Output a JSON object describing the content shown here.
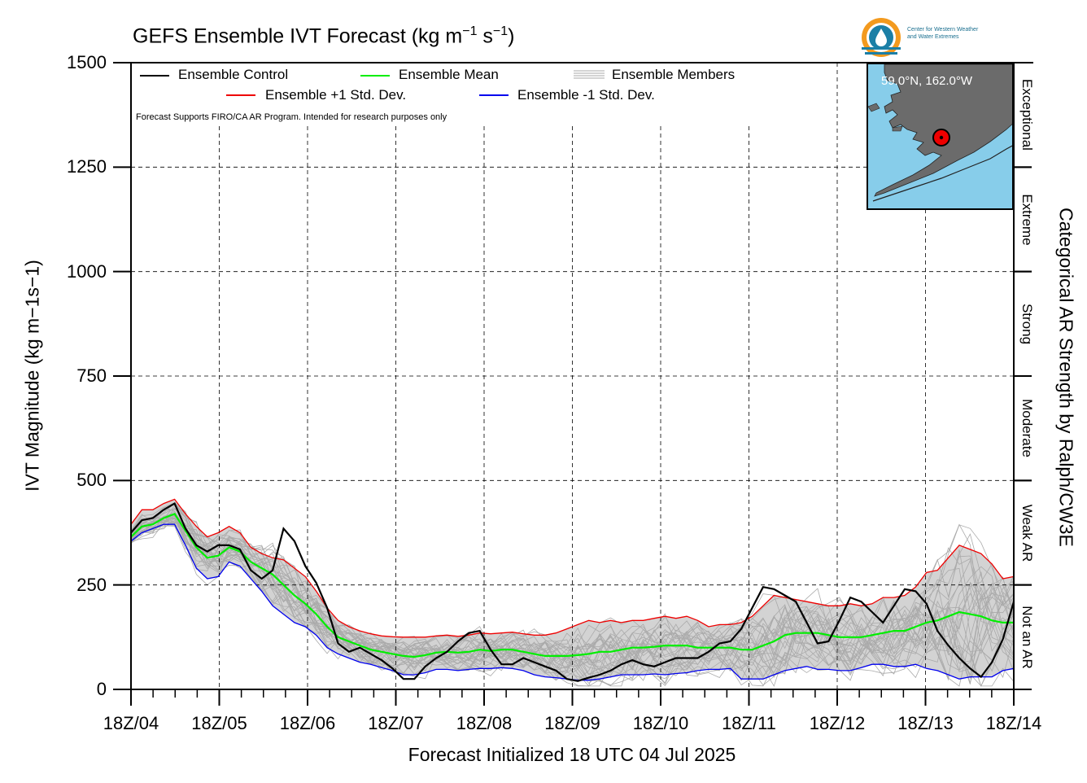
{
  "title": "GEFS Ensemble IVT Forecast (kg m",
  "title_exp1": "−1",
  "title_mid": " s",
  "title_exp2": "−1",
  "title_end": ")",
  "logo": {
    "line1": "Center for Western Weather",
    "line2": "and Water Extremes"
  },
  "legend": {
    "control": "Ensemble Control",
    "mean": "Ensemble Mean",
    "members": "Ensemble Members",
    "plus1": "Ensemble +1 Std. Dev.",
    "minus1": "Ensemble -1 Std. Dev."
  },
  "note": "Forecast Supports FIRO/CA AR Program. Intended for research purposes only",
  "inset_label": "59.0°N, 162.0°W",
  "ylabel": "IVT Magnitude (kg m−1s−1)",
  "right_label": "Categorical AR Strength by Ralph/CW3E",
  "xlabel": "Forecast Initialized 18 UTC 04 Jul 2025",
  "colors": {
    "control": "#000000",
    "mean": "#00ee00",
    "plus1": "#ee0000",
    "minus1": "#0000ee",
    "members": "#aaaaaa",
    "band": "#d3d3d3",
    "ocean": "#87cdea",
    "land": "#6b6b6b"
  },
  "chart_data": {
    "type": "line",
    "title": "GEFS Ensemble IVT Forecast (kg m−1 s−1)",
    "xlabel": "Forecast Initialized 18 UTC 04 Jul 2025",
    "ylabel": "IVT Magnitude (kg m−1s−1)",
    "ylim": [
      0,
      1500
    ],
    "yticks": [
      0,
      250,
      500,
      750,
      1000,
      1250,
      1500
    ],
    "xticks": [
      "18Z/04",
      "18Z/05",
      "18Z/06",
      "18Z/07",
      "18Z/08",
      "18Z/09",
      "18Z/10",
      "18Z/11",
      "18Z/12",
      "18Z/13",
      "18Z/14"
    ],
    "x_step_hours": 6,
    "grid": true,
    "categories_right": [
      {
        "label": "Not an AR",
        "from": 0,
        "to": 250
      },
      {
        "label": "Weak AR",
        "from": 250,
        "to": 500
      },
      {
        "label": "Moderate",
        "from": 500,
        "to": 750
      },
      {
        "label": "Strong",
        "from": 750,
        "to": 1000
      },
      {
        "label": "Extreme",
        "from": 1000,
        "to": 1250
      },
      {
        "label": "Exceptional",
        "from": 1250,
        "to": 1500
      }
    ],
    "series": [
      {
        "name": "Ensemble Control",
        "values": [
          375,
          405,
          410,
          430,
          445,
          385,
          345,
          330,
          345,
          345,
          335,
          285,
          265,
          285,
          385,
          355,
          295,
          255,
          195,
          110,
          90,
          100,
          85,
          70,
          50,
          25,
          25,
          55,
          75,
          90,
          115,
          135,
          140,
          95,
          60,
          60,
          75,
          65,
          55,
          45,
          25,
          20,
          28,
          35,
          45,
          60,
          70,
          60,
          55,
          65,
          75,
          75,
          75,
          90,
          110,
          115,
          145,
          195,
          245,
          240,
          225,
          210,
          160,
          110,
          115,
          165,
          220,
          210,
          185,
          160,
          200,
          240,
          235,
          205,
          140,
          105,
          75,
          50,
          30,
          65,
          120,
          210
        ]
      },
      {
        "name": "Ensemble Mean",
        "values": [
          365,
          390,
          395,
          410,
          420,
          380,
          340,
          315,
          320,
          340,
          330,
          305,
          290,
          275,
          250,
          225,
          205,
          180,
          150,
          125,
          115,
          105,
          95,
          90,
          85,
          80,
          78,
          82,
          88,
          90,
          88,
          90,
          95,
          92,
          95,
          95,
          90,
          85,
          80,
          80,
          80,
          82,
          85,
          90,
          90,
          95,
          100,
          100,
          102,
          105,
          105,
          105,
          100,
          100,
          100,
          100,
          95,
          95,
          105,
          115,
          130,
          135,
          135,
          135,
          130,
          125,
          125,
          125,
          130,
          135,
          140,
          140,
          150,
          160,
          165,
          175,
          185,
          180,
          175,
          165,
          160,
          160
        ]
      },
      {
        "name": "Ensemble +1 Std. Dev.",
        "values": [
          395,
          430,
          430,
          445,
          455,
          420,
          390,
          365,
          375,
          390,
          375,
          340,
          325,
          315,
          310,
          290,
          270,
          235,
          195,
          165,
          150,
          140,
          133,
          128,
          126,
          125,
          125,
          125,
          128,
          130,
          127,
          130,
          135,
          133,
          135,
          137,
          133,
          130,
          130,
          135,
          145,
          155,
          165,
          160,
          165,
          160,
          165,
          165,
          170,
          175,
          170,
          175,
          165,
          150,
          155,
          155,
          160,
          175,
          200,
          225,
          220,
          215,
          210,
          205,
          200,
          200,
          205,
          200,
          205,
          220,
          220,
          225,
          245,
          280,
          285,
          315,
          345,
          335,
          325,
          300,
          265,
          270
        ]
      },
      {
        "name": "Ensemble -1 Std. Dev.",
        "values": [
          355,
          375,
          385,
          395,
          395,
          345,
          290,
          265,
          270,
          305,
          295,
          265,
          235,
          200,
          180,
          160,
          150,
          130,
          100,
          85,
          75,
          65,
          60,
          52,
          45,
          35,
          35,
          40,
          48,
          48,
          45,
          48,
          50,
          50,
          52,
          50,
          45,
          35,
          30,
          28,
          25,
          22,
          22,
          25,
          30,
          35,
          35,
          35,
          37,
          35,
          38,
          40,
          45,
          48,
          48,
          50,
          25,
          25,
          25,
          35,
          45,
          50,
          55,
          48,
          48,
          45,
          45,
          52,
          60,
          60,
          55,
          55,
          60,
          50,
          45,
          35,
          25,
          30,
          30,
          30,
          45,
          50
        ]
      }
    ]
  }
}
